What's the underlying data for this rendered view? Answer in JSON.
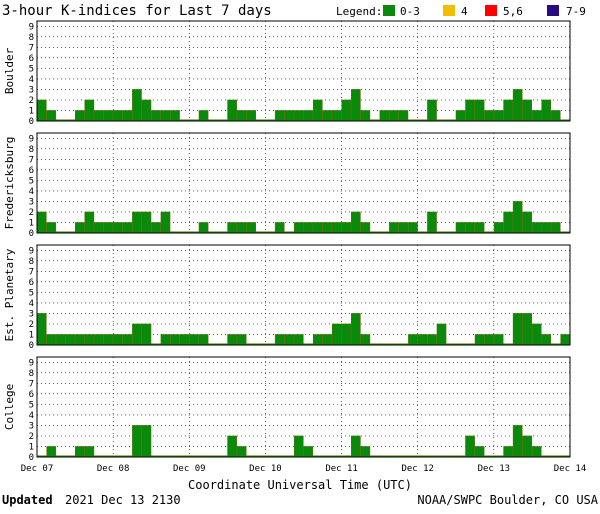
{
  "chart_data": {
    "type": "bar",
    "title": "3-hour K-indices for Last 7 days",
    "legend": {
      "title": "Legend:",
      "placement": "top-right",
      "items": [
        {
          "label": "0-3",
          "color": "#0a8a0a"
        },
        {
          "label": "4",
          "color": "#f0c000"
        },
        {
          "label": "5,6",
          "color": "#ff0000"
        },
        {
          "label": "7-9",
          "color": "#2a0a80"
        }
      ]
    },
    "xlabel": "Coordinate Universal Time (UTC)",
    "x_ticks": [
      "Dec 07",
      "Dec 08",
      "Dec 09",
      "Dec 10",
      "Dec 11",
      "Dec 12",
      "Dec 13",
      "Dec 14"
    ],
    "ylim": [
      0,
      9
    ],
    "y_ticks": [
      "0",
      "1",
      "2",
      "3",
      "4",
      "5",
      "6",
      "7",
      "8",
      "9"
    ],
    "grid": true,
    "series": [
      {
        "name": "Boulder",
        "values": [
          2,
          1,
          0,
          0,
          1,
          2,
          1,
          1,
          1,
          1,
          3,
          2,
          1,
          1,
          1,
          0,
          0,
          1,
          0,
          0,
          2,
          1,
          1,
          0,
          0,
          1,
          1,
          1,
          1,
          2,
          1,
          1,
          2,
          3,
          1,
          0,
          1,
          1,
          1,
          0,
          0,
          2,
          0,
          0,
          1,
          2,
          2,
          1,
          1,
          2,
          3,
          2,
          1,
          2,
          1,
          0
        ]
      },
      {
        "name": "Fredericksburg",
        "values": [
          2,
          1,
          0,
          0,
          1,
          2,
          1,
          1,
          1,
          1,
          2,
          2,
          1,
          2,
          0,
          0,
          0,
          1,
          0,
          0,
          1,
          1,
          1,
          0,
          0,
          1,
          0,
          1,
          1,
          1,
          1,
          1,
          1,
          2,
          1,
          0,
          0,
          1,
          1,
          1,
          0,
          2,
          0,
          0,
          1,
          1,
          1,
          0,
          1,
          2,
          3,
          2,
          1,
          1,
          1,
          0
        ]
      },
      {
        "name": "Est. Planetary",
        "values": [
          3,
          1,
          1,
          1,
          1,
          1,
          1,
          1,
          1,
          1,
          2,
          2,
          0,
          1,
          1,
          1,
          1,
          1,
          0,
          0,
          1,
          1,
          0,
          0,
          0,
          1,
          1,
          1,
          0,
          1,
          1,
          2,
          2,
          3,
          1,
          0,
          0,
          0,
          0,
          1,
          1,
          1,
          2,
          0,
          0,
          0,
          1,
          1,
          1,
          0,
          3,
          3,
          2,
          1,
          0,
          1
        ]
      },
      {
        "name": "College",
        "values": [
          0,
          1,
          0,
          0,
          1,
          1,
          0,
          0,
          0,
          0,
          3,
          3,
          0,
          0,
          0,
          0,
          0,
          0,
          0,
          0,
          2,
          1,
          0,
          0,
          0,
          0,
          0,
          2,
          1,
          0,
          0,
          0,
          0,
          2,
          1,
          0,
          0,
          0,
          0,
          0,
          0,
          0,
          0,
          0,
          0,
          2,
          1,
          0,
          0,
          1,
          3,
          2,
          1,
          0,
          0,
          0
        ]
      }
    ]
  },
  "footer": {
    "updated_label": "Updated",
    "updated_value": "2021 Dec 13 2130",
    "source": "NOAA/SWPC Boulder, CO USA"
  }
}
